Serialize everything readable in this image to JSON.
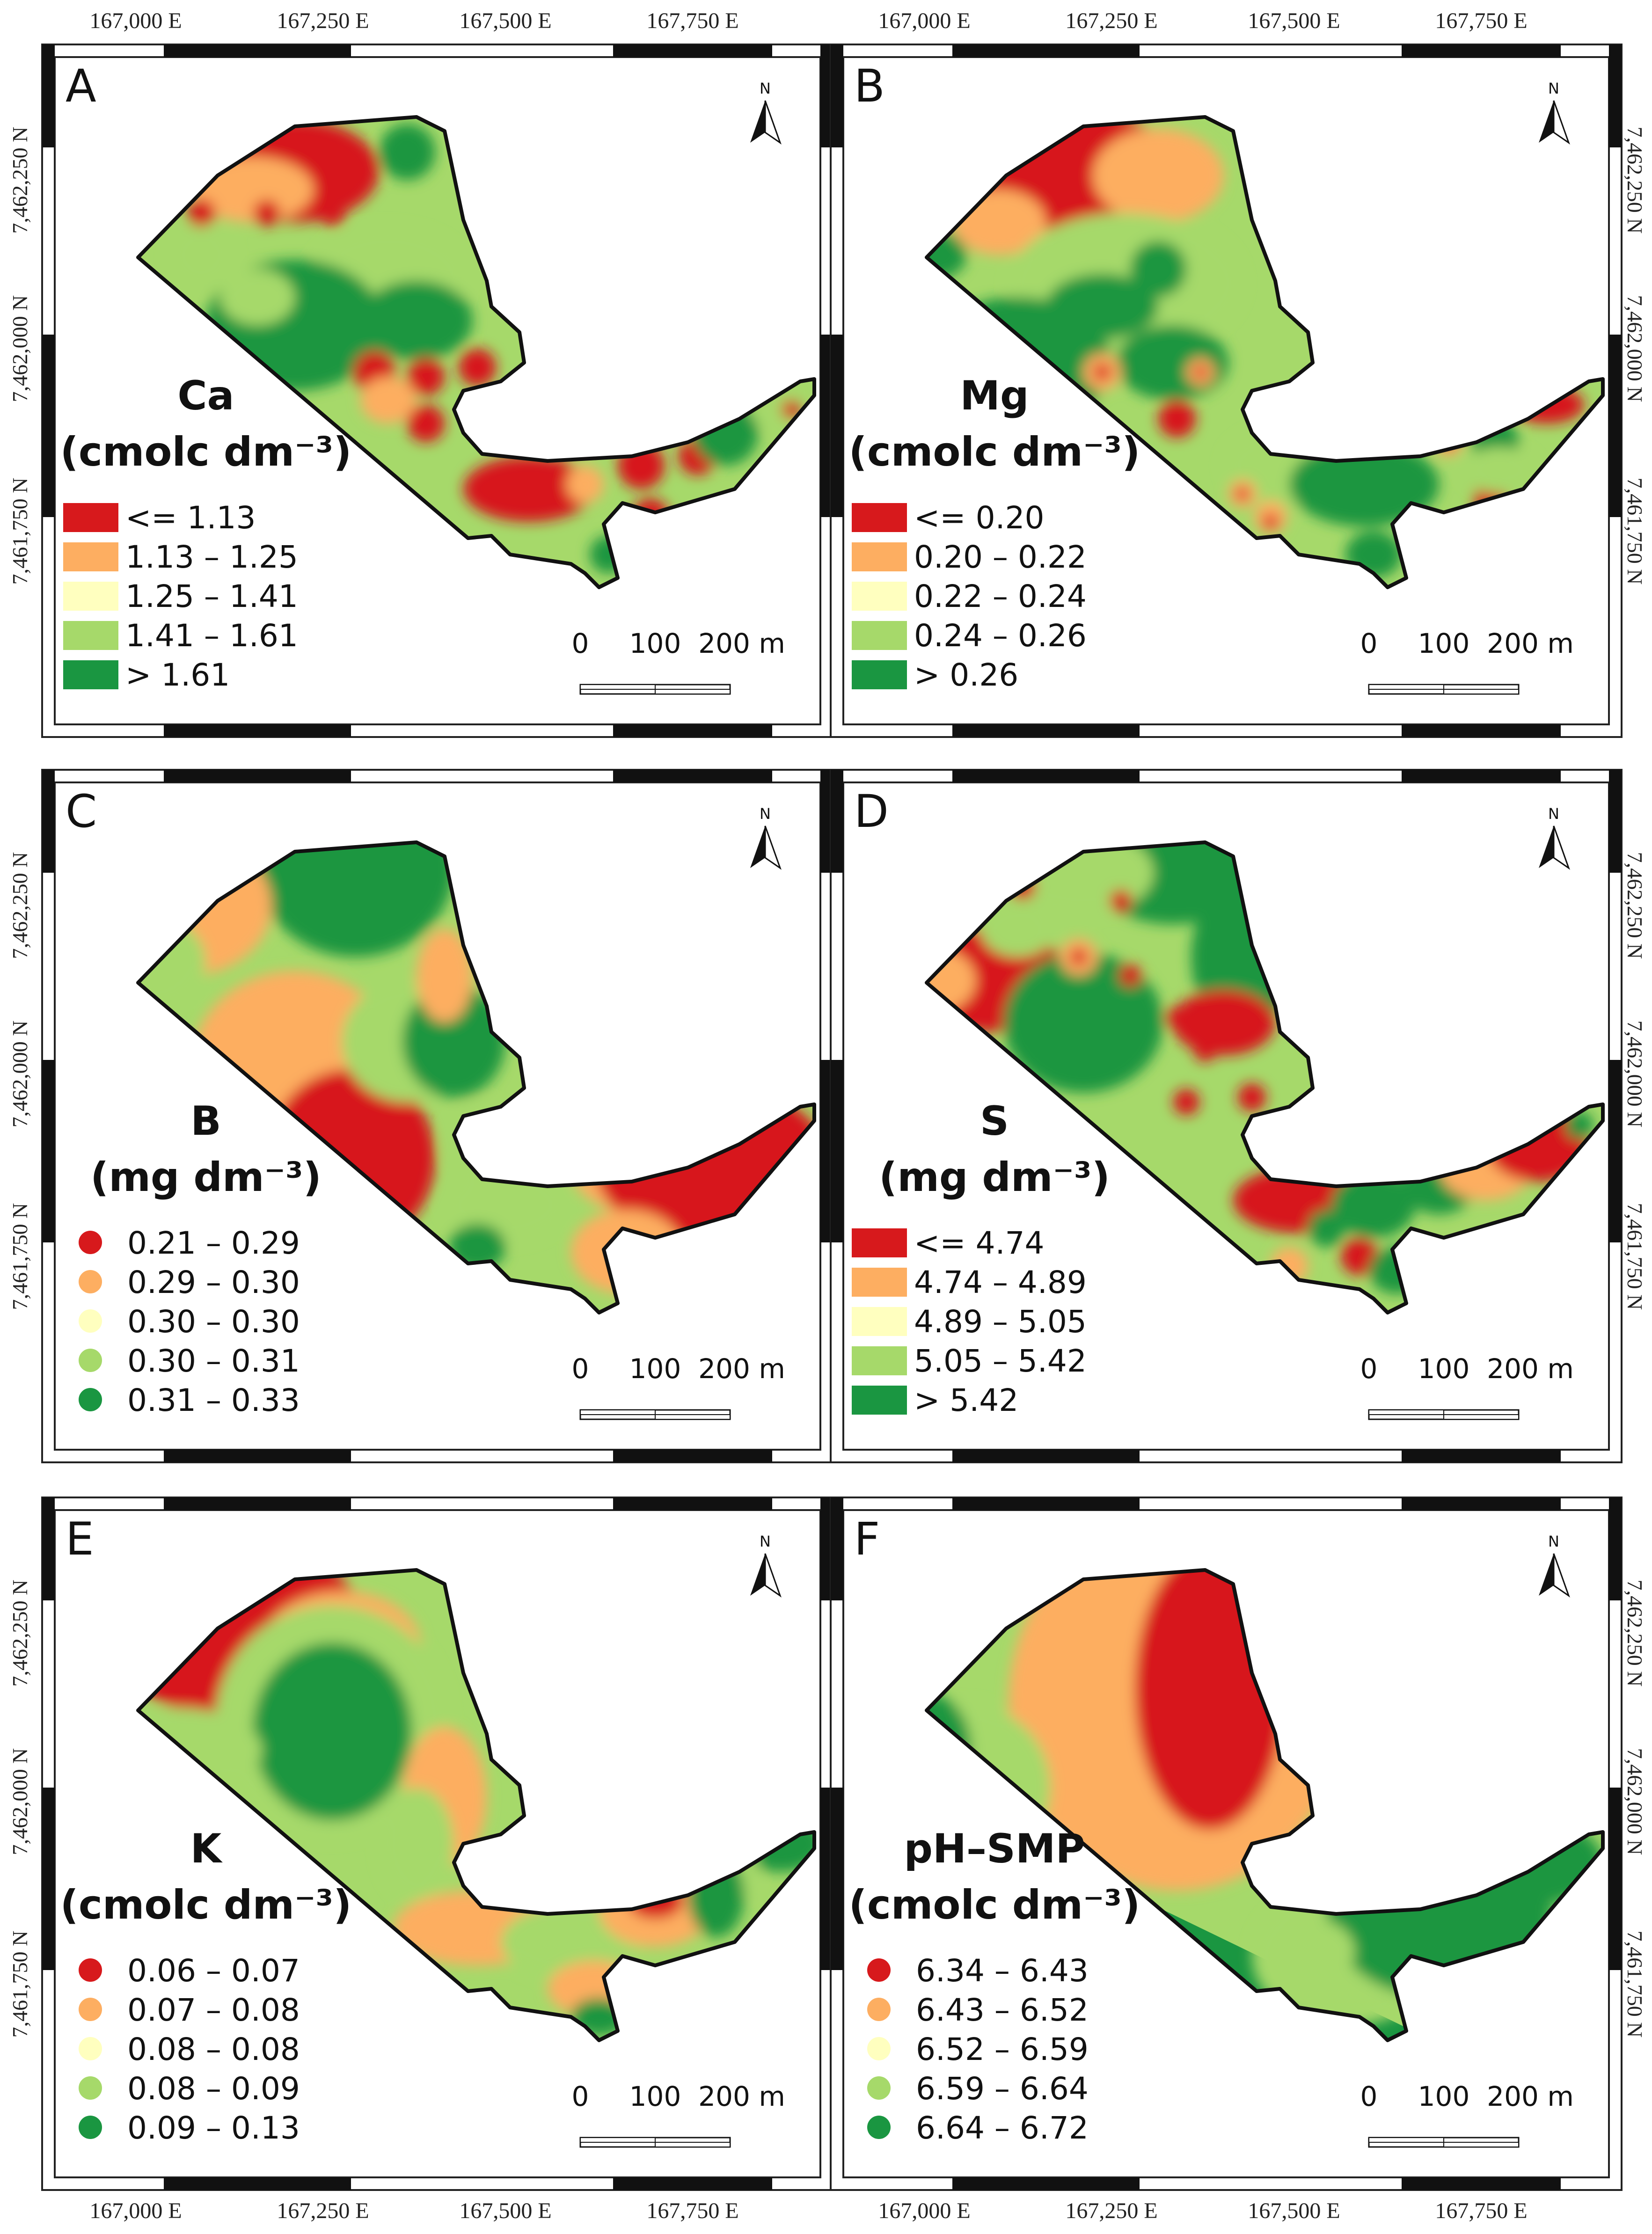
{
  "coords": {
    "eastings": [
      "167,000 E",
      "167,250 E",
      "167,500 E",
      "167,750 E"
    ],
    "northings": [
      "7,462,250 N",
      "7,462,000 N",
      "7,461,750 N"
    ]
  },
  "scalebar": {
    "labels": [
      "0",
      "100",
      "200 m"
    ]
  },
  "north_label": "N",
  "colors": {
    "c1": "#d7191c",
    "c2": "#fdae61",
    "c3": "#ffffbf",
    "c4": "#a6d96a",
    "c5": "#1a9641"
  },
  "panels": [
    {
      "letter": "A",
      "title": "Ca",
      "unit": "(cmolc dm⁻³)",
      "symbol": "square",
      "legend": [
        "<= 1.13",
        "1.13 – 1.25",
        "1.25 – 1.41",
        "1.41 – 1.61",
        "> 1.61"
      ]
    },
    {
      "letter": "B",
      "title": "Mg",
      "unit": "(cmolc dm⁻³)",
      "symbol": "square",
      "legend": [
        "<= 0.20",
        "0.20 – 0.22",
        "0.22 – 0.24",
        "0.24 – 0.26",
        "> 0.26"
      ]
    },
    {
      "letter": "C",
      "title": "B",
      "unit": "(mg dm⁻³)",
      "symbol": "circle",
      "legend": [
        "0.21 – 0.29",
        "0.29 – 0.30",
        "0.30 – 0.30",
        "0.30 – 0.31",
        "0.31 – 0.33"
      ]
    },
    {
      "letter": "D",
      "title": "S",
      "unit": "(mg dm⁻³)",
      "symbol": "square",
      "legend": [
        "<= 4.74",
        "4.74 – 4.89",
        "4.89 – 5.05",
        "5.05 – 5.42",
        "> 5.42"
      ]
    },
    {
      "letter": "E",
      "title": "K",
      "unit": "(cmolc dm⁻³)",
      "symbol": "circle",
      "legend": [
        "0.06 – 0.07",
        "0.07 – 0.08",
        "0.08 – 0.08",
        "0.08 – 0.09",
        "0.09 – 0.13"
      ]
    },
    {
      "letter": "F",
      "title": "pH–SMP",
      "unit": "(cmolc dm⁻³)",
      "symbol": "circle",
      "legend": [
        "6.34 – 6.43",
        "6.43 – 6.52",
        "6.52 – 6.59",
        "6.59 – 6.64",
        "6.64 – 6.72"
      ]
    }
  ]
}
